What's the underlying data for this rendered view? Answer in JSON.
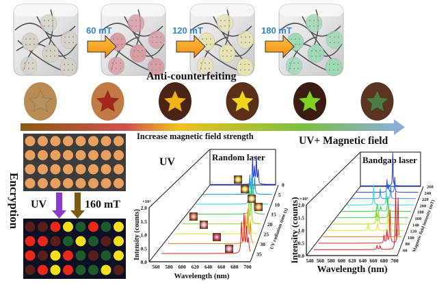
{
  "top": {
    "field_steps": [
      "60 mT",
      "120 mT",
      "180 mT"
    ],
    "cube_particle_colors": [
      "#d6d2c6",
      "#d99ba2",
      "#e9e5b2",
      "#9cdab4"
    ],
    "anti_counterfeiting_label": "Anti-counterfeiting",
    "pellets": [
      {
        "body": "#b88c55",
        "star": "#b59260"
      },
      {
        "body": "#c27a44",
        "star": "#a3261f"
      },
      {
        "body": "#4b2418",
        "star": "#f3b21c"
      },
      {
        "body": "#5a3018",
        "star": "#f2d51f"
      },
      {
        "body": "#3a1c10",
        "star": "#82d221"
      },
      {
        "body": "#5c3522",
        "star": "#4c7b44"
      }
    ],
    "gradient_colors": [
      "#8a5a10",
      "#d05050",
      "#f0c020",
      "#7cc040",
      "#8aaed6"
    ],
    "increase_label": "Increase magnetic field strength"
  },
  "encryption": {
    "label": "Encryption",
    "uv_label": "UV",
    "field_label": "160 mT",
    "uv_arrow_color": "#8a3cc8",
    "field_arrow_color": "#7a5a10",
    "before_color": "#e8a060",
    "after_grid": [
      [
        "brown",
        "brown",
        "red",
        "yellow",
        "green",
        "red",
        "green",
        "yellow"
      ],
      [
        "red",
        "red",
        "brown",
        "green",
        "yellow",
        "green",
        "brown",
        "yellow"
      ],
      [
        "red",
        "brown",
        "yellow",
        "red",
        "green",
        "brown",
        "green",
        "yellow"
      ],
      [
        "brown",
        "red",
        "yellow",
        "red",
        "green",
        "green",
        "yellow",
        "brown"
      ]
    ],
    "dot_colors": {
      "brown": "#5a1e18",
      "red": "#e82818",
      "yellow": "#f2e020",
      "green": "#1e5a2a"
    }
  },
  "chart_data": [
    {
      "type": "line",
      "panel_title": "UV",
      "inset_title": "Random laser",
      "xlabel": "Wavelength (nm)",
      "ylabel": "Intensity (counts)",
      "y_multiplier": "×10³",
      "zlabel": "UV radiation time (s)",
      "xlim": [
        560,
        700
      ],
      "ylim": [
        0,
        2.0
      ],
      "xticks": [
        "560",
        "580",
        "600",
        "620",
        "640",
        "660",
        "680",
        "700"
      ],
      "yticks": [
        "0.0",
        "0.5",
        "1.0",
        "1.5",
        "2.0"
      ],
      "series": [
        {
          "z": "0",
          "color": "#1c2fd2",
          "peaks": [
            [
              651,
              0.9
            ],
            [
              655,
              0.6
            ],
            [
              659,
              1.0
            ],
            [
              663,
              0.5
            ]
          ]
        },
        {
          "z": "5",
          "color": "#1f86e6",
          "peaks": [
            [
              655,
              0.7
            ],
            [
              660,
              0.8
            ],
            [
              665,
              0.6
            ]
          ]
        },
        {
          "z": "10",
          "color": "#22c8ea",
          "peaks": [
            [
              662,
              0.6
            ],
            [
              667,
              0.9
            ],
            [
              671,
              0.5
            ]
          ]
        },
        {
          "z": "15",
          "color": "#2ed040",
          "peaks": [
            [
              672,
              0.8
            ],
            [
              676,
              1.1
            ],
            [
              679,
              0.6
            ]
          ]
        },
        {
          "z": "20",
          "color": "#86d420",
          "peaks": [
            [
              678,
              0.7
            ],
            [
              682,
              1.0
            ]
          ]
        },
        {
          "z": "25",
          "color": "#f2e41e",
          "peaks": [
            [
              684,
              0.9
            ],
            [
              688,
              0.5
            ]
          ]
        },
        {
          "z": "30",
          "color": "#f28020",
          "peaks": [
            [
              686,
              1.0
            ],
            [
              690,
              1.2
            ],
            [
              694,
              0.7
            ]
          ]
        },
        {
          "z": "35",
          "color": "#e41e1e",
          "peaks": [
            [
              686,
              1.1
            ],
            [
              690,
              1.4
            ],
            [
              694,
              0.9
            ],
            [
              697,
              0.5
            ]
          ]
        }
      ],
      "inset_glow_colors": [
        "#d8e060",
        "#f0e060",
        "#f0e090",
        "#f0c060",
        "#e89070",
        "#f0a8b8",
        "#e85890",
        "#f0a0c0"
      ]
    },
    {
      "type": "line",
      "panel_title": "UV+ Magnetic field",
      "inset_title": "Bandgap laser",
      "xlabel": "Wavelength (nm)",
      "ylabel": "Intensity (counts)",
      "y_multiplier": "×10³",
      "zlabel": "Magnetic field intensity (mT)",
      "xlim": [
        540,
        700
      ],
      "ylim": [
        0,
        2.0
      ],
      "xticks": [
        "540",
        "560",
        "580",
        "600",
        "620",
        "640",
        "660",
        "680",
        "700"
      ],
      "yticks": [
        "0.0",
        "0.5",
        "1.0",
        "1.5",
        "2.0"
      ],
      "series": [
        {
          "z": "260",
          "color": "#2030d0",
          "peaks": [
            [
              626,
              1.3
            ]
          ]
        },
        {
          "z": "240",
          "color": "#2050e0",
          "peaks": [
            [
              620,
              0.5
            ],
            [
              624,
              0.3
            ],
            [
              640,
              0.6
            ]
          ]
        },
        {
          "z": "220",
          "color": "#2090f0",
          "peaks": [
            [
              612,
              0.4
            ],
            [
              638,
              0.5
            ]
          ]
        },
        {
          "z": "200",
          "color": "#20d8e0",
          "peaks": [
            [
              605,
              0.8
            ],
            [
              635,
              0.6
            ]
          ]
        },
        {
          "z": "180",
          "color": "#30d040",
          "peaks": [
            [
              622,
              0.3
            ],
            [
              630,
              0.2
            ],
            [
              646,
              0.6
            ]
          ]
        },
        {
          "z": "160",
          "color": "#44d040",
          "peaks": [
            [
              628,
              0.4
            ],
            [
              655,
              0.5
            ]
          ]
        },
        {
          "z": "140",
          "color": "#a0e020",
          "peaks": [
            [
              635,
              0.5
            ],
            [
              640,
              0.5
            ],
            [
              662,
              0.6
            ]
          ]
        },
        {
          "z": "120",
          "color": "#f0e020",
          "peaks": [
            [
              625,
              0.3
            ],
            [
              645,
              0.3
            ],
            [
              668,
              0.5
            ]
          ]
        },
        {
          "z": "100",
          "color": "#f07020",
          "peaks": [
            [
              670,
              0.2
            ],
            [
              690,
              0.3
            ]
          ]
        },
        {
          "z": "80",
          "color": "#e02020",
          "peaks": [
            [
              670,
              0.3
            ],
            [
              676,
              0.5
            ],
            [
              682,
              1.3
            ],
            [
              698,
              1.8
            ]
          ]
        },
        {
          "z": "60",
          "color": "#e01818",
          "peaks": [
            [
              662,
              0.15
            ],
            [
              668,
              0.15
            ],
            [
              698,
              2.3
            ]
          ]
        }
      ]
    }
  ]
}
